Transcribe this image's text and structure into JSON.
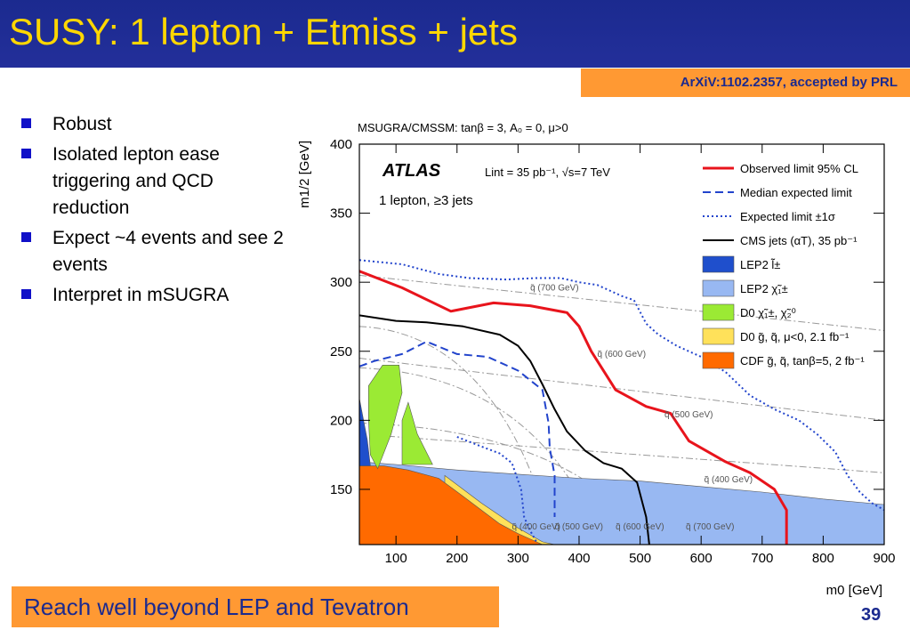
{
  "slide": {
    "title": "SUSY: 1 lepton + Etmiss + jets",
    "reference": "ArXiV:1102.2357, accepted by PRL",
    "bullets": [
      "Robust",
      "Isolated lepton ease triggering and QCD reduction",
      "Expect ~4 events and see 2 events",
      "Interpret in mSUGRA"
    ],
    "footer": "Reach well beyond LEP and Tevatron",
    "page_number": "39",
    "colors": {
      "title_bg": "#1b2a8f",
      "title_text": "#ffd700",
      "accent": "#ff9933",
      "bullet": "#1010c8"
    }
  },
  "chart_data": {
    "type": "line",
    "title": "MSUGRA/CMSSM: tanβ = 3, A₀ = 0, μ>0",
    "experiment": "ATLAS",
    "luminosity": "Lint = 35 pb⁻¹, √s=7 TeV",
    "selection": "1 lepton, ≥3 jets",
    "xlabel": "m0 [GeV]",
    "ylabel": "m1/2 [GeV]",
    "xlim": [
      40,
      900
    ],
    "ylim": [
      110,
      400
    ],
    "xticks": [
      100,
      200,
      300,
      400,
      500,
      600,
      700,
      800,
      900
    ],
    "yticks": [
      150,
      200,
      250,
      300,
      350,
      400
    ],
    "legend_position": "top-right",
    "series": [
      {
        "name": "Observed limit 95% CL",
        "color": "#e8141c",
        "style": "solid",
        "points": [
          [
            40,
            308
          ],
          [
            110,
            296
          ],
          [
            190,
            279
          ],
          [
            260,
            285
          ],
          [
            320,
            283
          ],
          [
            380,
            278
          ],
          [
            400,
            268
          ],
          [
            420,
            250
          ],
          [
            460,
            222
          ],
          [
            510,
            210
          ],
          [
            550,
            205
          ],
          [
            580,
            185
          ],
          [
            640,
            170
          ],
          [
            680,
            162
          ],
          [
            720,
            150
          ],
          [
            740,
            135
          ],
          [
            740,
            110
          ]
        ]
      },
      {
        "name": "Median expected limit",
        "color": "#2244cc",
        "style": "dashed",
        "points": [
          [
            40,
            239
          ],
          [
            65,
            243
          ],
          [
            110,
            248
          ],
          [
            150,
            257
          ],
          [
            200,
            248
          ],
          [
            250,
            246
          ],
          [
            300,
            236
          ],
          [
            340,
            222
          ],
          [
            350,
            198
          ],
          [
            352,
            180
          ],
          [
            360,
            160
          ],
          [
            360,
            130
          ]
        ]
      },
      {
        "name": "Expected limit ±1σ",
        "color": "#2244cc",
        "style": "dotted",
        "points": [
          [
            40,
            316
          ],
          [
            110,
            313
          ],
          [
            170,
            306
          ],
          [
            220,
            303
          ],
          [
            280,
            302
          ],
          [
            330,
            303
          ],
          [
            370,
            303
          ],
          [
            400,
            300
          ],
          [
            430,
            298
          ],
          [
            450,
            294
          ],
          [
            470,
            290
          ],
          [
            490,
            287
          ],
          [
            510,
            270
          ],
          [
            530,
            262
          ],
          [
            560,
            254
          ],
          [
            600,
            246
          ],
          [
            640,
            235
          ],
          [
            680,
            218
          ],
          [
            720,
            208
          ],
          [
            760,
            200
          ],
          [
            790,
            190
          ],
          [
            820,
            177
          ],
          [
            840,
            160
          ],
          [
            860,
            148
          ],
          [
            880,
            140
          ],
          [
            900,
            135
          ]
        ]
      },
      {
        "name": "Expected limit ±1σ",
        "color": "#2244cc",
        "style": "dotted",
        "points": [
          [
            200,
            188
          ],
          [
            240,
            181
          ],
          [
            270,
            176
          ],
          [
            290,
            169
          ],
          [
            305,
            150
          ],
          [
            310,
            130
          ],
          [
            320,
            120
          ],
          [
            330,
            112
          ]
        ]
      },
      {
        "name": "CMS jets (αT), 35 pb⁻¹",
        "color": "#000000",
        "style": "solid",
        "points": [
          [
            40,
            276
          ],
          [
            100,
            272
          ],
          [
            150,
            271
          ],
          [
            210,
            268
          ],
          [
            270,
            262
          ],
          [
            300,
            254
          ],
          [
            320,
            243
          ],
          [
            340,
            226
          ],
          [
            360,
            208
          ],
          [
            380,
            192
          ],
          [
            410,
            178
          ],
          [
            440,
            169
          ],
          [
            470,
            165
          ],
          [
            495,
            155
          ],
          [
            510,
            130
          ],
          [
            515,
            110
          ]
        ]
      }
    ],
    "regions": [
      {
        "name": "LEP2 l̃±",
        "color": "#1f4fcc",
        "points": [
          [
            40,
            110
          ],
          [
            40,
            216
          ],
          [
            53,
            186
          ],
          [
            60,
            160
          ],
          [
            65,
            140
          ],
          [
            65,
            110
          ]
        ]
      },
      {
        "name": "LEP2 χ̃₁±",
        "color": "#98b8f2",
        "points": [
          [
            40,
            170
          ],
          [
            100,
            168
          ],
          [
            200,
            164
          ],
          [
            300,
            161
          ],
          [
            400,
            158
          ],
          [
            500,
            156
          ],
          [
            600,
            152
          ],
          [
            700,
            148
          ],
          [
            800,
            143
          ],
          [
            900,
            139
          ],
          [
            900,
            110
          ],
          [
            40,
            110
          ]
        ]
      },
      {
        "name": "D0 χ̃₁±, χ̃₂⁰",
        "color": "#9bea34",
        "points": [
          [
            55,
            225
          ],
          [
            78,
            240
          ],
          [
            105,
            240
          ],
          [
            110,
            220
          ],
          [
            92,
            190
          ],
          [
            70,
            165
          ],
          [
            58,
            175
          ],
          [
            55,
            200
          ]
        ]
      },
      {
        "name": "D0 χ̃₁±, χ̃₂⁰",
        "color": "#9bea34",
        "points": [
          [
            120,
            213
          ],
          [
            135,
            190
          ],
          [
            160,
            168
          ],
          [
            110,
            168
          ],
          [
            110,
            200
          ]
        ]
      },
      {
        "name": "D0 g̃, q̃, μ<0, 2.1 fb⁻¹",
        "color": "#ffe15a",
        "points": [
          [
            180,
            160
          ],
          [
            240,
            140
          ],
          [
            300,
            122
          ],
          [
            340,
            112
          ],
          [
            360,
            110
          ],
          [
            200,
            110
          ],
          [
            180,
            140
          ]
        ]
      },
      {
        "name": "CDF g̃, q̃, tanβ=5, 2 fb⁻¹",
        "color": "#ff6a00",
        "points": [
          [
            40,
            167
          ],
          [
            80,
            167
          ],
          [
            120,
            164
          ],
          [
            170,
            158
          ],
          [
            210,
            145
          ],
          [
            240,
            135
          ],
          [
            270,
            125
          ],
          [
            300,
            118
          ],
          [
            330,
            112
          ],
          [
            340,
            110
          ],
          [
            40,
            110
          ]
        ]
      }
    ],
    "contour_labels": [
      {
        "text": "q̃ (700 GeV)",
        "x": 320,
        "y": 294
      },
      {
        "text": "q̃ (600 GeV)",
        "x": 430,
        "y": 246
      },
      {
        "text": "q̃ (500 GeV)",
        "x": 540,
        "y": 202
      },
      {
        "text": "q̃ (400 GeV)",
        "x": 605,
        "y": 155
      },
      {
        "text": "q̃ (400 GeV)",
        "x": 290,
        "y": 121
      },
      {
        "text": "q̃ (500 GeV)",
        "x": 360,
        "y": 121
      },
      {
        "text": "q̃ (600 GeV)",
        "x": 460,
        "y": 121
      },
      {
        "text": "q̃ (700 GeV)",
        "x": 575,
        "y": 121
      }
    ]
  }
}
